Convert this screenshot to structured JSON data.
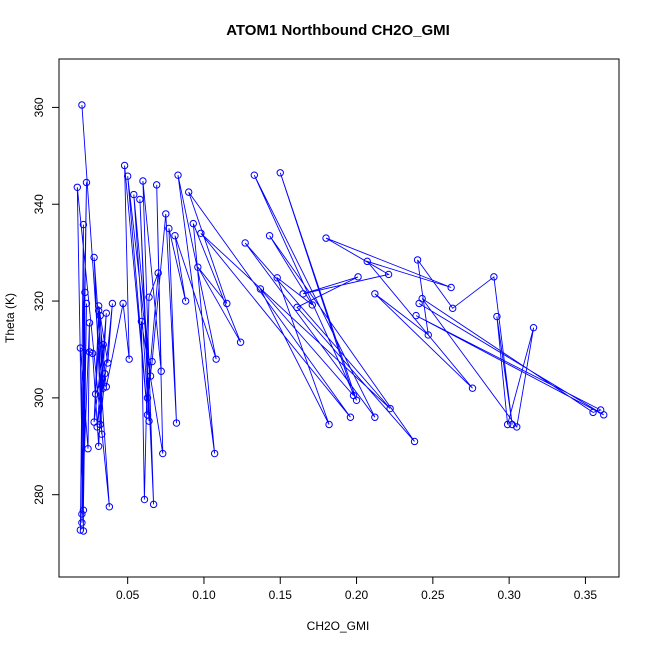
{
  "chart_data": {
    "type": "line",
    "title": "ATOM1 Northbound CH2O_GMI",
    "xlabel": "CH2O_GMI",
    "ylabel": "Theta (K)",
    "xlim": [
      0.005,
      0.372
    ],
    "ylim": [
      263,
      370
    ],
    "x_ticks": [
      0.05,
      0.1,
      0.15,
      0.2,
      0.25,
      0.3,
      0.35
    ],
    "x_tick_labels": [
      "0.05",
      "0.10",
      "0.15",
      "0.20",
      "0.25",
      "0.30",
      "0.35"
    ],
    "y_ticks": [
      280,
      300,
      320,
      340,
      360
    ],
    "y_tick_labels": [
      "280",
      "300",
      "320",
      "340",
      "360"
    ],
    "grid": false,
    "marker": "open-circle",
    "series": [
      {
        "color": "#0000ff",
        "points": [
          [
            0.02,
            360.5
          ],
          [
            0.038,
            277.5
          ],
          [
            0.017,
            343.5
          ],
          [
            0.021,
            272.5
          ],
          [
            0.021,
            335.8
          ],
          [
            0.019,
            272.7
          ],
          [
            0.023,
            344.5
          ],
          [
            0.02,
            274.2
          ],
          [
            0.022,
            321.8
          ],
          [
            0.021,
            276.8
          ],
          [
            0.023,
            319.5
          ],
          [
            0.02,
            276.0
          ],
          [
            0.025,
            315.5
          ],
          [
            0.024,
            289.5
          ],
          [
            0.019,
            310.3
          ],
          [
            0.025,
            309.5
          ],
          [
            0.027,
            309.2
          ],
          [
            0.031,
            290.0
          ],
          [
            0.034,
            311.0
          ],
          [
            0.028,
            295.0
          ],
          [
            0.031,
            318.0
          ],
          [
            0.033,
            292.5
          ],
          [
            0.028,
            329.0
          ],
          [
            0.034,
            302.0
          ],
          [
            0.032,
            317.0
          ],
          [
            0.029,
            300.8
          ],
          [
            0.035,
            305.0
          ],
          [
            0.03,
            294.0
          ],
          [
            0.036,
            317.5
          ],
          [
            0.032,
            294.5
          ],
          [
            0.04,
            319.5
          ],
          [
            0.037,
            307.2
          ],
          [
            0.031,
            319.0
          ],
          [
            0.036,
            302.3
          ],
          [
            0.047,
            319.5
          ],
          [
            0.051,
            308.0
          ],
          [
            0.048,
            348.0
          ],
          [
            0.063,
            296.5
          ],
          [
            0.05,
            345.8
          ],
          [
            0.065,
            304.5
          ],
          [
            0.054,
            342.0
          ],
          [
            0.064,
            295.2
          ],
          [
            0.058,
            341.0
          ],
          [
            0.067,
            278.0
          ],
          [
            0.06,
            344.8
          ],
          [
            0.072,
            305.5
          ],
          [
            0.069,
            344.0
          ],
          [
            0.073,
            288.5
          ],
          [
            0.059,
            315.8
          ],
          [
            0.061,
            279.0
          ],
          [
            0.064,
            320.8
          ],
          [
            0.07,
            325.8
          ],
          [
            0.063,
            300.0
          ],
          [
            0.066,
            307.5
          ],
          [
            0.075,
            338.0
          ],
          [
            0.082,
            294.8
          ],
          [
            0.077,
            335.0
          ],
          [
            0.088,
            320.0
          ],
          [
            0.081,
            333.5
          ],
          [
            0.108,
            308.0
          ],
          [
            0.083,
            346.0
          ],
          [
            0.107,
            288.5
          ],
          [
            0.093,
            336.0
          ],
          [
            0.124,
            311.5
          ],
          [
            0.096,
            327.0
          ],
          [
            0.115,
            319.5
          ],
          [
            0.09,
            342.5
          ],
          [
            0.196,
            296.0
          ],
          [
            0.098,
            334.0
          ],
          [
            0.222,
            297.8
          ],
          [
            0.127,
            332.0
          ],
          [
            0.212,
            296.0
          ],
          [
            0.133,
            346.0
          ],
          [
            0.2,
            299.5
          ],
          [
            0.15,
            346.5
          ],
          [
            0.198,
            300.5
          ],
          [
            0.137,
            322.5
          ],
          [
            0.182,
            294.5
          ],
          [
            0.148,
            324.8
          ],
          [
            0.171,
            319.2
          ],
          [
            0.143,
            333.5
          ],
          [
            0.238,
            291.0
          ],
          [
            0.161,
            318.7
          ],
          [
            0.201,
            325.0
          ],
          [
            0.165,
            321.5
          ],
          [
            0.221,
            325.5
          ],
          [
            0.18,
            333.0
          ],
          [
            0.262,
            322.8
          ],
          [
            0.207,
            328.2
          ],
          [
            0.276,
            302.0
          ],
          [
            0.212,
            321.5
          ],
          [
            0.247,
            313.0
          ],
          [
            0.24,
            328.5
          ],
          [
            0.263,
            318.5
          ],
          [
            0.29,
            325.0
          ],
          [
            0.302,
            294.5
          ],
          [
            0.292,
            316.8
          ],
          [
            0.299,
            294.5
          ],
          [
            0.316,
            314.5
          ],
          [
            0.305,
            294.0
          ],
          [
            0.243,
            320.5
          ],
          [
            0.355,
            297.0
          ],
          [
            0.36,
            297.5
          ],
          [
            0.239,
            317.0
          ],
          [
            0.362,
            296.5
          ],
          [
            0.241,
            319.5
          ]
        ]
      }
    ]
  }
}
